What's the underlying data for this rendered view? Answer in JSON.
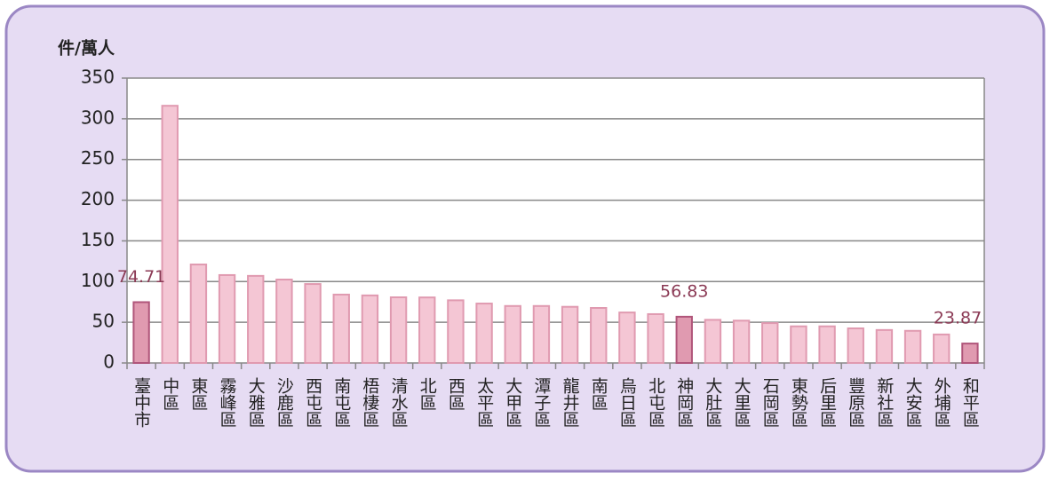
{
  "chart_data": {
    "type": "bar",
    "y_axis_label": "件/萬人",
    "categories": [
      "臺中市",
      "中區",
      "東區",
      "霧峰區",
      "大雅區",
      "沙鹿區",
      "西屯區",
      "南屯區",
      "梧棲區",
      "清水區",
      "北區",
      "西區",
      "太平區",
      "大甲區",
      "潭子區",
      "龍井區",
      "南區",
      "烏日區",
      "北屯區",
      "神岡區",
      "大肚區",
      "大里區",
      "石岡區",
      "東勢區",
      "后里區",
      "豐原區",
      "新社區",
      "大安區",
      "外埔區",
      "和平區"
    ],
    "values": [
      74.71,
      316,
      121,
      108,
      107,
      102.5,
      97,
      84,
      83,
      80.7,
      80.5,
      77,
      73,
      70,
      70,
      69,
      67.6,
      62,
      60,
      56.83,
      53,
      52,
      49,
      45,
      45,
      42.5,
      40.5,
      39.5,
      35,
      23.87
    ],
    "colors": [
      "#e09ab0",
      "#f4c6d4",
      "#f4c6d4",
      "#f4c6d4",
      "#f4c6d4",
      "#f4c6d4",
      "#f4c6d4",
      "#f4c6d4",
      "#f4c6d4",
      "#f4c6d4",
      "#f4c6d4",
      "#f4c6d4",
      "#f4c6d4",
      "#f4c6d4",
      "#f4c6d4",
      "#f4c6d4",
      "#f4c6d4",
      "#f4c6d4",
      "#f4c6d4",
      "#e09ab0",
      "#f4c6d4",
      "#f4c6d4",
      "#f4c6d4",
      "#f4c6d4",
      "#f4c6d4",
      "#f4c6d4",
      "#f4c6d4",
      "#f4c6d4",
      "#f4c6d4",
      "#e09ab0"
    ],
    "labeled_bars": [
      0,
      19,
      29
    ],
    "ylim": [
      0,
      350
    ],
    "yticks": [
      0,
      50,
      100,
      150,
      200,
      250,
      300,
      350
    ],
    "grid": true
  }
}
